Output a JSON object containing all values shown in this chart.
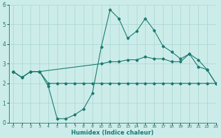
{
  "background_color": "#ccecea",
  "grid_color": "#add8d5",
  "line_color": "#1a7a6e",
  "xlabel": "Humidex (Indice chaleur)",
  "xlim": [
    -0.5,
    23
  ],
  "ylim": [
    0,
    6
  ],
  "xticks": [
    0,
    1,
    2,
    3,
    4,
    5,
    6,
    7,
    8,
    9,
    10,
    11,
    12,
    13,
    14,
    15,
    16,
    17,
    18,
    19,
    20,
    21,
    22,
    23
  ],
  "yticks": [
    0,
    1,
    2,
    3,
    4,
    5,
    6
  ],
  "line1_x": [
    0,
    1,
    2,
    3,
    10,
    11,
    12,
    13,
    14,
    15,
    16,
    17,
    18,
    19,
    20,
    21,
    22,
    23
  ],
  "line1_y": [
    2.6,
    2.3,
    2.6,
    2.6,
    3.0,
    3.1,
    3.1,
    3.2,
    3.2,
    3.35,
    3.25,
    3.25,
    3.1,
    3.1,
    3.5,
    3.2,
    2.7,
    2.0
  ],
  "line2_x": [
    0,
    1,
    2,
    3,
    4,
    5,
    6,
    7,
    8,
    9,
    10,
    11,
    12,
    13,
    14,
    15,
    16,
    17,
    18,
    19,
    20,
    21,
    22,
    23
  ],
  "line2_y": [
    2.6,
    2.3,
    2.6,
    2.6,
    1.85,
    0.2,
    0.2,
    0.4,
    0.7,
    1.5,
    3.85,
    5.75,
    5.3,
    4.3,
    4.65,
    5.3,
    4.7,
    3.9,
    3.6,
    3.25,
    3.5,
    2.85,
    2.7,
    2.0
  ],
  "line3_x": [
    0,
    1,
    2,
    3,
    4,
    5,
    6,
    7,
    8,
    9,
    10,
    11,
    12,
    13,
    14,
    15,
    16,
    17,
    18,
    19,
    20,
    21,
    22,
    23
  ],
  "line3_y": [
    2.6,
    2.3,
    2.6,
    2.6,
    2.0,
    2.0,
    2.0,
    2.0,
    2.0,
    2.0,
    2.0,
    2.0,
    2.0,
    2.0,
    2.0,
    2.0,
    2.0,
    2.0,
    2.0,
    2.0,
    2.0,
    2.0,
    2.0,
    2.0
  ]
}
